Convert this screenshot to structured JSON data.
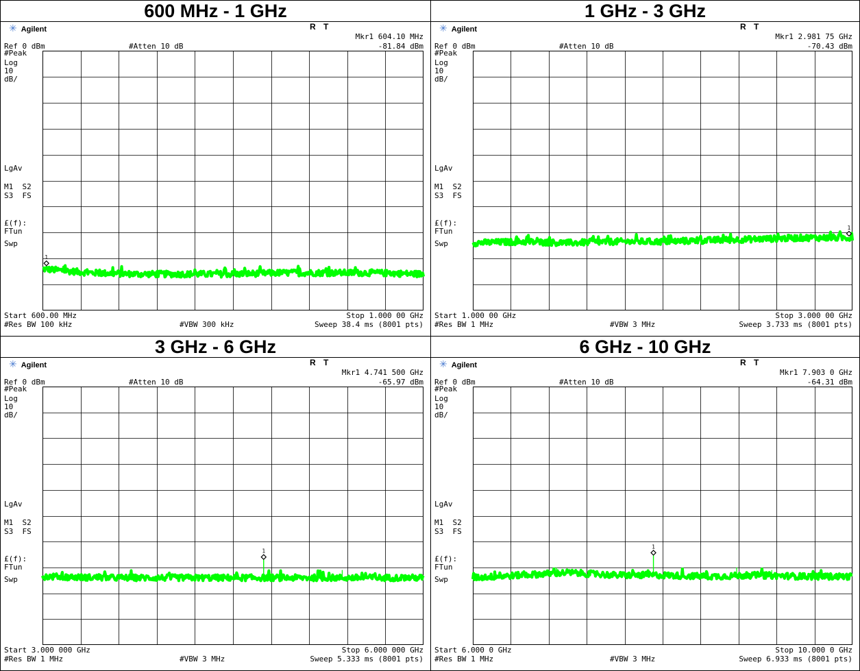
{
  "panels": [
    {
      "title": "600 MHz - 1 GHz",
      "brand": "Agilent",
      "status_r": "R",
      "status_t": "T",
      "marker_label": "Mkr1",
      "marker_freq": "604.10 MHz",
      "marker_level": "-81.84 dBm",
      "ref_level": "Ref 0 dBm",
      "atten": "#Atten 10 dB",
      "detector": "#Peak",
      "scale_type": "Log",
      "scale_value": "10",
      "scale_unit": "dB/",
      "avg_mode": "LgAv",
      "ann_m1s2": "M1  S2",
      "ann_s3fs": "S3  FS",
      "ann_ef": "£(f):",
      "ann_ftun": "FTun",
      "ann_swp": "Swp",
      "start": "Start 600.00 MHz",
      "stop": "Stop 1.000 00 GHz",
      "rbw": "#Res BW 100 kHz",
      "vbw": "#VBW 300 kHz",
      "sweep": "Sweep 38.4 ms (8001 pts)",
      "marker_num": "1",
      "chart_data": {
        "type": "line",
        "x_unit": "MHz",
        "y_unit": "dBm",
        "xlim": [
          600,
          1000
        ],
        "ylim": [
          -100,
          0
        ],
        "grid": true,
        "series": [
          {
            "color": "#00ff00",
            "x": [
              600,
              650,
              700,
              750,
              800,
              850,
              900,
              950,
              1000
            ],
            "y": [
              -84,
              -85.5,
              -86,
              -86,
              -86,
              -85.5,
              -85.5,
              -85.5,
              -86
            ]
          }
        ],
        "markers": [
          {
            "x": 604.1,
            "y": -81.84
          }
        ],
        "spurs": []
      }
    },
    {
      "title": "1 GHz - 3 GHz",
      "brand": "Agilent",
      "status_r": "R",
      "status_t": "T",
      "marker_label": "Mkr1",
      "marker_freq": "2.981 75 GHz",
      "marker_level": "-70.43 dBm",
      "ref_level": "Ref 0 dBm",
      "atten": "#Atten 10 dB",
      "detector": "#Peak",
      "scale_type": "Log",
      "scale_value": "10",
      "scale_unit": "dB/",
      "avg_mode": "LgAv",
      "ann_m1s2": "M1  S2",
      "ann_s3fs": "S3  FS",
      "ann_ef": "£(f):",
      "ann_ftun": "FTun",
      "ann_swp": "Swp",
      "start": "Start 1.000 00 GHz",
      "stop": "Stop 3.000 00 GHz",
      "rbw": "#Res BW 1 MHz",
      "vbw": "#VBW 3 MHz",
      "sweep": "Sweep 3.733 ms (8001 pts)",
      "marker_num": "1",
      "chart_data": {
        "type": "line",
        "x_unit": "GHz",
        "y_unit": "dBm",
        "xlim": [
          1,
          3
        ],
        "ylim": [
          -100,
          0
        ],
        "grid": true,
        "series": [
          {
            "color": "#00ff00",
            "x": [
              1,
              1.25,
              1.5,
              1.75,
              2,
              2.25,
              2.5,
              2.75,
              3
            ],
            "y": [
              -74,
              -73.5,
              -74,
              -73.5,
              -73.5,
              -73,
              -72.5,
              -72,
              -72
            ]
          }
        ],
        "markers": [
          {
            "x": 2.98175,
            "y": -70.43
          }
        ],
        "spurs": []
      }
    },
    {
      "title": "3 GHz - 6 GHz",
      "brand": "Agilent",
      "status_r": "R",
      "status_t": "T",
      "marker_label": "Mkr1",
      "marker_freq": "4.741 500 GHz",
      "marker_level": "-65.97 dBm",
      "ref_level": "Ref 0 dBm",
      "atten": "#Atten 10 dB",
      "detector": "#Peak",
      "scale_type": "Log",
      "scale_value": "10",
      "scale_unit": "dB/",
      "avg_mode": "LgAv",
      "ann_m1s2": "M1  S2",
      "ann_s3fs": "S3  FS",
      "ann_ef": "£(f):",
      "ann_ftun": "FTun",
      "ann_swp": "Swp",
      "start": "Start 3.000 000 GHz",
      "stop": "Stop 6.000 000 GHz",
      "rbw": "#Res BW 1 MHz",
      "vbw": "#VBW 3 MHz",
      "sweep": "Sweep 5.333 ms (8001 pts)",
      "marker_num": "1",
      "chart_data": {
        "type": "line",
        "x_unit": "GHz",
        "y_unit": "dBm",
        "xlim": [
          3,
          6
        ],
        "ylim": [
          -100,
          0
        ],
        "grid": true,
        "series": [
          {
            "color": "#00ff00",
            "x": [
              3,
              3.5,
              4,
              4.5,
              5,
              5.5,
              6
            ],
            "y": [
              -73.5,
              -74,
              -74,
              -74,
              -74,
              -74,
              -74
            ]
          }
        ],
        "markers": [
          {
            "x": 4.7415,
            "y": -65.97
          }
        ],
        "spurs": [
          {
            "x": 5.36,
            "y": -71
          }
        ]
      }
    },
    {
      "title": "6 GHz - 10 GHz",
      "brand": "Agilent",
      "status_r": "R",
      "status_t": "T",
      "marker_label": "Mkr1",
      "marker_freq": "7.903 0 GHz",
      "marker_level": "-64.31 dBm",
      "ref_level": "Ref 0 dBm",
      "atten": "#Atten 10 dB",
      "detector": "#Peak",
      "scale_type": "Log",
      "scale_value": "10",
      "scale_unit": "dB/",
      "avg_mode": "LgAv",
      "ann_m1s2": "M1  S2",
      "ann_s3fs": "S3  FS",
      "ann_ef": "£(f):",
      "ann_ftun": "FTun",
      "ann_swp": "Swp",
      "start": "Start 6.000 0 GHz",
      "stop": "Stop 10.000 0 GHz",
      "rbw": "#Res BW 1 MHz",
      "vbw": "#VBW 3 MHz",
      "sweep": "Sweep 6.933 ms (8001 pts)",
      "marker_num": "1",
      "chart_data": {
        "type": "line",
        "x_unit": "GHz",
        "y_unit": "dBm",
        "xlim": [
          6,
          10
        ],
        "ylim": [
          -100,
          0
        ],
        "grid": true,
        "series": [
          {
            "color": "#00ff00",
            "x": [
              6,
              6.5,
              7,
              7.5,
              8,
              8.5,
              9,
              9.5,
              10
            ],
            "y": [
              -74,
              -73,
              -72,
              -73,
              -73,
              -73.5,
              -73,
              -73.5,
              -73.5
            ]
          }
        ],
        "markers": [
          {
            "x": 7.903,
            "y": -64.31
          }
        ],
        "spurs": [
          {
            "x": 6.88,
            "y": -70
          },
          {
            "x": 8.78,
            "y": -70
          },
          {
            "x": 9.15,
            "y": -71
          }
        ]
      }
    }
  ]
}
